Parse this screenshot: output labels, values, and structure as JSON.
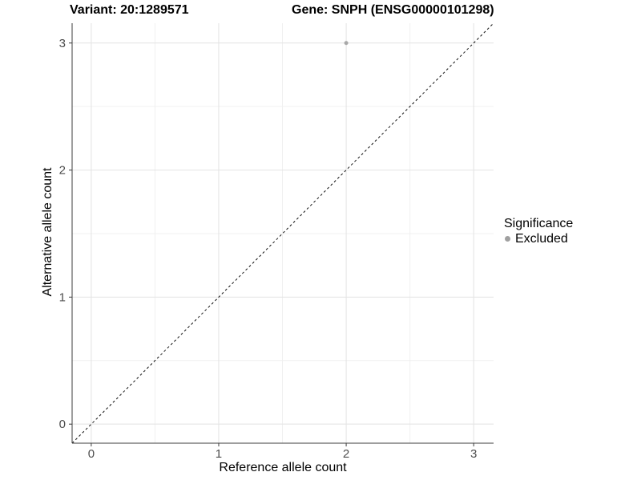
{
  "title": {
    "left": "Variant: 20:1289571",
    "right": "Gene: SNPH (ENSG00000101298)"
  },
  "axes": {
    "x_label": "Reference allele count",
    "y_label": "Alternative allele count"
  },
  "legend": {
    "title": "Significance",
    "items": [
      {
        "label": "Excluded",
        "color": "#a0a0a0"
      }
    ]
  },
  "colors": {
    "background": "#ffffff",
    "grid_major": "#e3e3e3",
    "grid_minor": "#f0f0f0",
    "axis_line": "#3c3c3c",
    "tick_mark": "#3c3c3c",
    "tick_label": "#4d4d4d",
    "point": "#a8a8a8",
    "identity_line": "#111111"
  },
  "chart_data": {
    "type": "scatter",
    "title": "Variant: 20:1289571    Gene: SNPH (ENSG00000101298)",
    "xlabel": "Reference allele count",
    "ylabel": "Alternative allele count",
    "xlim": [
      -0.15,
      3.156
    ],
    "ylim": [
      -0.15,
      3.156
    ],
    "x_ticks": [
      0,
      1,
      2,
      3
    ],
    "y_ticks": [
      0,
      1,
      2,
      3
    ],
    "x_minor_ticks": [
      0.5,
      1.5,
      2.5
    ],
    "y_minor_ticks": [
      0.5,
      1.5,
      2.5
    ],
    "grid": true,
    "legend_position": "right",
    "series": [
      {
        "name": "Excluded",
        "color": "#a8a8a8",
        "points": [
          {
            "x": 2,
            "y": 3
          }
        ]
      }
    ],
    "reference_line": {
      "kind": "abline",
      "slope": 1,
      "intercept": 0,
      "style": "dashed",
      "color": "#111111"
    }
  }
}
